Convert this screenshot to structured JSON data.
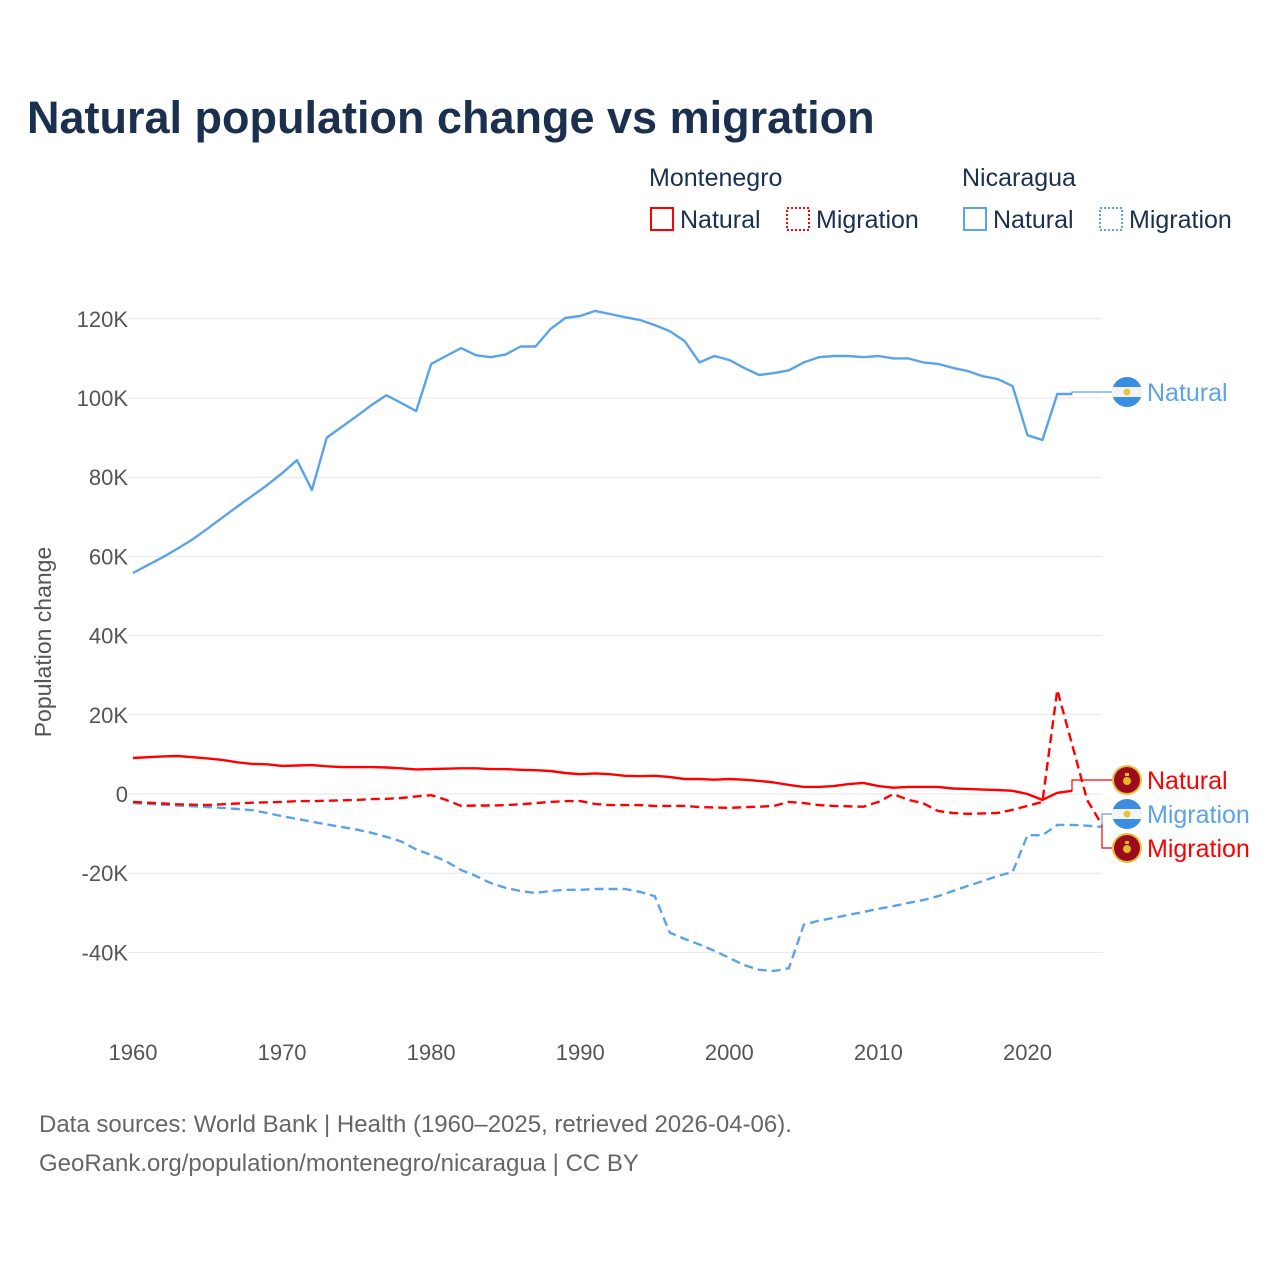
{
  "chart_data": {
    "type": "line",
    "title": "Natural population change vs migration",
    "ylabel": "Population change",
    "xlabel": "",
    "xlim": [
      1960,
      2025
    ],
    "ylim": [
      -55000,
      135000
    ],
    "x_ticks": [
      1960,
      1970,
      1980,
      1990,
      2000,
      2010,
      2020
    ],
    "y_ticks": [
      -40000,
      -20000,
      0,
      20000,
      40000,
      60000,
      80000,
      100000,
      120000
    ],
    "y_tick_labels": [
      "-40K",
      "-20K",
      "0",
      "20K",
      "40K",
      "60K",
      "80K",
      "100K",
      "120K"
    ],
    "grid": "horizontal",
    "legend": {
      "placement": "top-right",
      "groups": [
        {
          "name": "Montenegro",
          "items": [
            {
              "label": "Natural",
              "style": "solid",
              "color": "#ff0000"
            },
            {
              "label": "Migration",
              "style": "dotted",
              "color": "#ff0000"
            }
          ]
        },
        {
          "name": "Nicaragua",
          "items": [
            {
              "label": "Natural",
              "style": "solid",
              "color": "#5ba3e8"
            },
            {
              "label": "Migration",
              "style": "dotted",
              "color": "#5ba3e8"
            }
          ]
        }
      ]
    },
    "value_unit_multiplier": 1000,
    "series": [
      {
        "name": "Nicaragua Natural",
        "country": "Nicaragua",
        "label": "Natural",
        "color": "#5ba3e8",
        "dash": false,
        "start_year": 1960,
        "values": [
          55.8,
          57.8,
          59.8,
          62.0,
          64.3,
          67.0,
          69.8,
          72.6,
          75.3,
          78.0,
          81.0,
          84.3,
          76.8,
          90.0,
          92.7,
          95.4,
          98.2,
          100.7,
          98.7,
          96.7,
          108.6,
          110.6,
          112.6,
          110.8,
          110.3,
          111.0,
          113.0,
          113.0,
          117.4,
          120.2,
          120.7,
          122.0,
          121.2,
          120.4,
          119.7,
          118.4,
          116.9,
          114.4,
          109.0,
          110.6,
          109.6,
          107.6,
          105.8,
          106.3,
          107.0,
          109.0,
          110.3,
          110.6,
          110.6,
          110.3,
          110.6,
          110.0,
          110.0,
          109.0,
          108.6,
          107.6,
          106.8,
          105.5,
          104.8,
          103.0,
          90.6,
          89.4,
          101.0,
          101.0
        ]
      },
      {
        "name": "Montenegro Natural",
        "country": "Montenegro",
        "label": "Natural",
        "color": "#ff0000",
        "dash": false,
        "start_year": 1960,
        "values": [
          9.1,
          9.3,
          9.5,
          9.6,
          9.3,
          9.0,
          8.6,
          8.0,
          7.6,
          7.5,
          7.1,
          7.2,
          7.3,
          7.0,
          6.8,
          6.8,
          6.8,
          6.7,
          6.5,
          6.2,
          6.3,
          6.4,
          6.5,
          6.5,
          6.3,
          6.3,
          6.1,
          6.0,
          5.8,
          5.3,
          5.0,
          5.2,
          5.0,
          4.6,
          4.5,
          4.6,
          4.3,
          3.8,
          3.8,
          3.6,
          3.8,
          3.6,
          3.3,
          2.9,
          2.3,
          1.8,
          1.8,
          2.0,
          2.5,
          2.8,
          2.0,
          1.6,
          1.8,
          1.8,
          1.8,
          1.4,
          1.3,
          1.1,
          1.0,
          0.8,
          0.0,
          -1.5,
          0.3,
          0.8
        ]
      },
      {
        "name": "Nicaragua Migration",
        "country": "Nicaragua",
        "label": "Migration",
        "color": "#5ba3e8",
        "dash": true,
        "start_year": 1960,
        "values": [
          -2.3,
          -2.5,
          -2.7,
          -2.9,
          -3.1,
          -3.3,
          -3.5,
          -3.8,
          -4.1,
          -4.8,
          -5.6,
          -6.3,
          -7.0,
          -7.7,
          -8.3,
          -9.0,
          -9.8,
          -10.8,
          -12.0,
          -14.0,
          -15.4,
          -17.0,
          -19.2,
          -20.7,
          -22.5,
          -23.7,
          -24.5,
          -25.0,
          -24.5,
          -24.2,
          -24.2,
          -24.0,
          -24.0,
          -24.0,
          -24.7,
          -25.8,
          -35.0,
          -36.6,
          -38.0,
          -39.6,
          -41.4,
          -43.2,
          -44.4,
          -44.7,
          -44.0,
          -33.0,
          -32.0,
          -31.3,
          -30.5,
          -29.8,
          -29.0,
          -28.3,
          -27.5,
          -26.8,
          -25.8,
          -24.5,
          -23.2,
          -22.0,
          -20.7,
          -19.7,
          -10.4,
          -10.4,
          -7.8,
          -7.8,
          -8.0,
          -8.3
        ]
      },
      {
        "name": "Montenegro Migration",
        "country": "Montenegro",
        "label": "Migration",
        "color": "#ff0000",
        "dash": true,
        "start_year": 1960,
        "values": [
          -2.0,
          -2.2,
          -2.4,
          -2.6,
          -2.7,
          -2.8,
          -2.6,
          -2.4,
          -2.2,
          -2.1,
          -2.0,
          -1.8,
          -1.8,
          -1.7,
          -1.6,
          -1.5,
          -1.3,
          -1.2,
          -1.0,
          -0.6,
          -0.3,
          -1.5,
          -3.0,
          -2.9,
          -2.9,
          -2.8,
          -2.6,
          -2.3,
          -2.0,
          -1.8,
          -1.8,
          -2.5,
          -2.8,
          -2.8,
          -2.8,
          -3.0,
          -3.0,
          -3.0,
          -3.3,
          -3.4,
          -3.5,
          -3.3,
          -3.2,
          -3.0,
          -2.0,
          -2.3,
          -2.8,
          -3.0,
          -3.1,
          -3.2,
          -2.0,
          0.0,
          -1.5,
          -2.3,
          -4.3,
          -4.8,
          -5.0,
          -4.9,
          -4.8,
          -4.0,
          -3.0,
          -2.0,
          26.3,
          12.4,
          -1.5,
          -7.8
        ]
      }
    ],
    "end_labels": [
      {
        "series": "Nicaragua Natural",
        "text": "Natural",
        "color": "#5ba3e8",
        "flag": "nicaragua-flag"
      },
      {
        "series": "Montenegro Natural",
        "text": "Natural",
        "color": "#ff0000",
        "flag": "montenegro-flag"
      },
      {
        "series": "Nicaragua Migration",
        "text": "Migration",
        "color": "#5ba3e8",
        "flag": "nicaragua-flag"
      },
      {
        "series": "Montenegro Migration",
        "text": "Migration",
        "color": "#ff0000",
        "flag": "montenegro-flag"
      }
    ]
  },
  "footer": {
    "line1": "Data sources: World Bank | Health (1960–2025, retrieved 2026-04-06).",
    "line2": "GeoRank.org/population/montenegro/nicaragua | CC BY"
  }
}
